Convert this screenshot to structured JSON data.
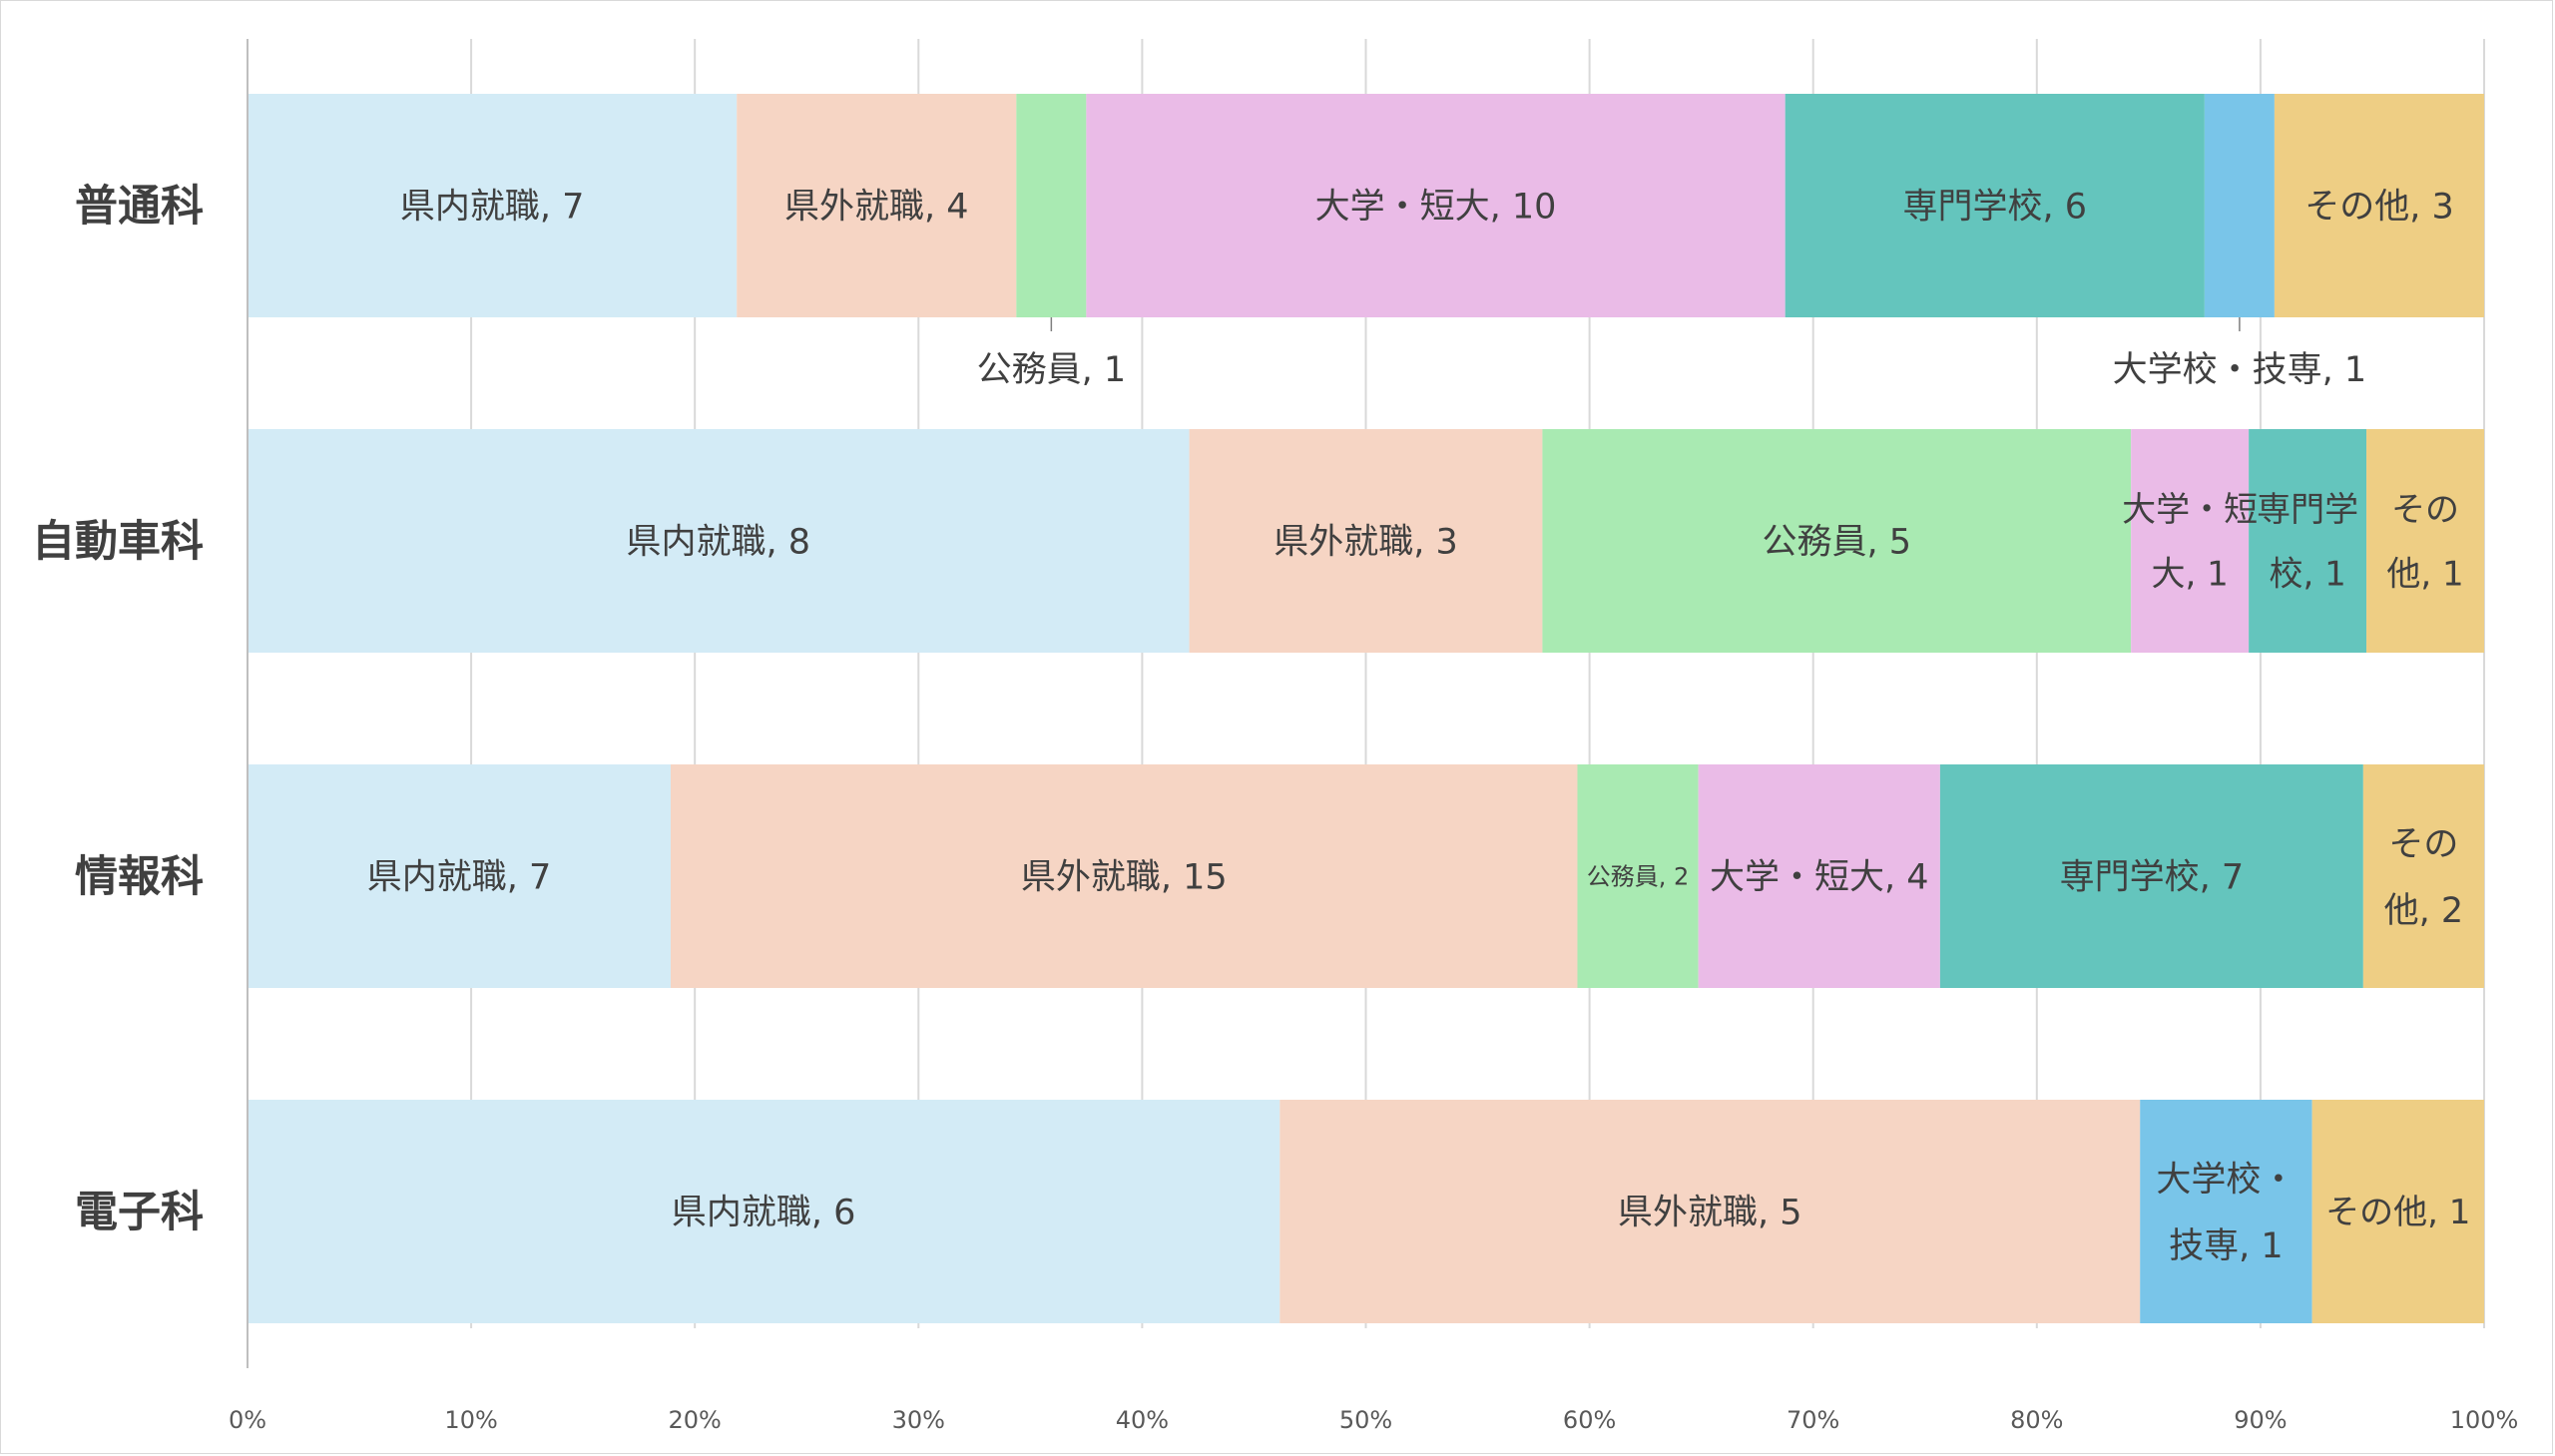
{
  "chart_data": {
    "type": "bar",
    "orientation": "horizontal",
    "stacked": "percent",
    "title": "",
    "xlabel": "",
    "ylabel": "",
    "xlim": [
      0,
      100
    ],
    "x_ticks": [
      "0%",
      "10%",
      "20%",
      "30%",
      "40%",
      "50%",
      "60%",
      "70%",
      "80%",
      "90%",
      "100%"
    ],
    "grid": true,
    "legend": "none",
    "categories": [
      "普通科",
      "自動車科",
      "情報科",
      "電子科"
    ],
    "series": [
      {
        "name": "県内就職",
        "color": "#d3ebf6",
        "values": [
          7,
          8,
          7,
          6
        ]
      },
      {
        "name": "県外就職",
        "color": "#f6d5c4",
        "values": [
          4,
          3,
          15,
          5
        ]
      },
      {
        "name": "公務員",
        "color": "#a9eab2",
        "values": [
          1,
          5,
          2,
          0
        ]
      },
      {
        "name": "大学・短大",
        "color": "#eabbe7",
        "values": [
          10,
          1,
          4,
          0
        ]
      },
      {
        "name": "専門学校",
        "color": "#64c5bd",
        "values": [
          6,
          1,
          7,
          0
        ]
      },
      {
        "name": "大学校・技専",
        "color": "#79c5e9",
        "values": [
          1,
          0,
          0,
          1
        ]
      },
      {
        "name": "その他",
        "color": "#eece84",
        "values": [
          3,
          1,
          2,
          1
        ]
      }
    ],
    "data_labels": [
      [
        "県内就職, 7",
        "県外就職, 4",
        "公務員, 1",
        "大学・短大, 10",
        "専門学校, 6",
        "大学校・技専, 1",
        "その他, 3"
      ],
      [
        "県内就職, 8",
        "県外就職, 3",
        "公務員, 5",
        "大学・短|大, 1",
        "専門学|校, 1",
        "",
        "その|他, 1"
      ],
      [
        "県内就職, 7",
        "県外就職, 15",
        "公務員, 2",
        "大学・短大, 4",
        "専門学校, 7",
        "",
        "その|他, 2"
      ],
      [
        "県内就職, 6",
        "県外就職, 5",
        "",
        "",
        "",
        "大学校・|技専, 1",
        "その他, 1"
      ]
    ]
  }
}
